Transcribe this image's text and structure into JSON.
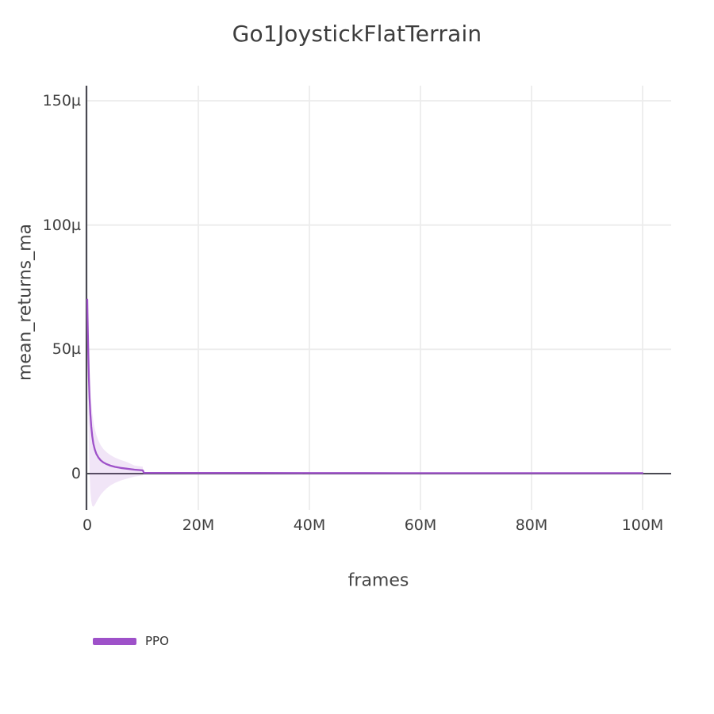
{
  "title": "Go1JoystickFlatTerrain",
  "chart_data": {
    "type": "line",
    "title": "Go1JoystickFlatTerrain",
    "xlabel": "frames",
    "ylabel": "mean_returns_ma",
    "x_unit": "frames (millions)",
    "y_unit": "micro (1e-6)",
    "xlim_millions": [
      0,
      105
    ],
    "ylim_micro": [
      -15,
      156
    ],
    "grid": true,
    "grid_color": "#ececec",
    "axis_color": "#4a4a52",
    "background_color": "#ffffff",
    "legend_position": "bottom-left",
    "xtick_labels": [
      "0",
      "20M",
      "40M",
      "60M",
      "80M",
      "100M"
    ],
    "xtick_values_millions": [
      0,
      20,
      40,
      60,
      80,
      100
    ],
    "ytick_labels": [
      "0",
      "50µ",
      "100µ",
      "150µ"
    ],
    "ytick_values_micro": [
      0,
      50,
      100,
      150
    ],
    "series": [
      {
        "name": "PPO",
        "color": "#9e51c9",
        "band_fill": "rgba(158,81,201,0.15)",
        "x_millions": [
          0,
          0.05,
          0.12,
          0.2,
          0.3,
          0.42,
          0.56,
          0.72,
          0.9,
          1.1,
          1.35,
          1.65,
          2,
          2.4,
          2.9,
          3.5,
          4.2,
          5,
          6,
          7,
          8.5,
          10,
          10.2,
          15,
          20,
          30,
          40,
          50,
          60,
          70,
          80,
          90,
          100
        ],
        "y_micro": [
          70,
          64,
          56,
          47,
          38,
          30.5,
          24,
          19,
          15,
          12,
          9.7,
          7.9,
          6.5,
          5.4,
          4.5,
          3.8,
          3.2,
          2.7,
          2.3,
          2,
          1.6,
          1.3,
          0.3,
          0.28,
          0.26,
          0.24,
          0.22,
          0.22,
          0.2,
          0.2,
          0.2,
          0.2,
          0.2
        ],
        "band": {
          "x_millions": [
            0,
            0.05,
            0.12,
            0.2,
            0.3,
            0.42,
            0.56,
            0.72,
            0.9,
            1.1,
            1.35,
            1.65,
            2,
            2.4,
            2.9,
            3.5,
            4.2,
            5,
            6,
            7,
            8.5,
            10
          ],
          "upper_micro": [
            70,
            66,
            60,
            53,
            46,
            39.5,
            33.5,
            28.5,
            24.5,
            21,
            18,
            15.5,
            13.3,
            11.5,
            9.9,
            8.6,
            7.4,
            6.4,
            5.5,
            4.8,
            3.3,
            2.8
          ],
          "lower_micro": [
            70,
            55,
            38,
            23,
            10,
            0,
            -7,
            -11,
            -13,
            -13.3,
            -12.6,
            -11.4,
            -10,
            -8.6,
            -7.2,
            -5.9,
            -4.7,
            -3.7,
            -2.8,
            -2.1,
            -1.2,
            -0.7
          ]
        }
      }
    ]
  },
  "legend": {
    "items": [
      {
        "label": "PPO",
        "color": "#9e51c9"
      }
    ]
  }
}
